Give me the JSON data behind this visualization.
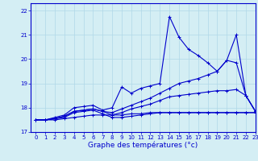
{
  "xlabel": "Graphe des températures (°c)",
  "xlim": [
    -0.5,
    23
  ],
  "ylim": [
    17,
    22.3
  ],
  "yticks": [
    17,
    18,
    19,
    20,
    21,
    22
  ],
  "xticks": [
    0,
    1,
    2,
    3,
    4,
    5,
    6,
    7,
    8,
    9,
    10,
    11,
    12,
    13,
    14,
    15,
    16,
    17,
    18,
    19,
    20,
    21,
    22,
    23
  ],
  "background_color": "#d4eef4",
  "grid_color": "#b0d8e8",
  "line_color": "#0000cc",
  "series": [
    {
      "x": [
        0,
        1,
        2,
        3,
        4,
        5,
        6,
        7,
        8,
        9,
        10,
        11,
        12,
        13,
        14,
        15,
        16,
        17,
        18,
        19,
        20,
        21,
        22,
        23
      ],
      "y": [
        17.5,
        17.5,
        17.5,
        17.55,
        17.6,
        17.65,
        17.7,
        17.7,
        17.7,
        17.7,
        17.75,
        17.75,
        17.8,
        17.8,
        17.8,
        17.8,
        17.8,
        17.8,
        17.8,
        17.8,
        17.8,
        17.8,
        17.8,
        17.8
      ]
    },
    {
      "x": [
        0,
        1,
        2,
        3,
        4,
        5,
        6,
        7,
        8,
        9,
        10,
        11,
        12,
        13,
        14,
        15,
        16,
        17,
        18,
        19,
        20,
        21,
        22,
        23
      ],
      "y": [
        17.5,
        17.5,
        17.55,
        17.6,
        17.8,
        17.85,
        17.9,
        17.75,
        17.6,
        17.6,
        17.65,
        17.7,
        17.75,
        17.8,
        17.8,
        17.8,
        17.8,
        17.8,
        17.8,
        17.8,
        17.8,
        17.8,
        17.8,
        17.8
      ]
    },
    {
      "x": [
        0,
        1,
        2,
        3,
        4,
        5,
        6,
        7,
        8,
        9,
        10,
        11,
        12,
        13,
        14,
        15,
        16,
        17,
        18,
        19,
        20,
        21,
        22,
        23
      ],
      "y": [
        17.5,
        17.5,
        17.55,
        17.65,
        17.85,
        17.9,
        17.95,
        17.85,
        17.7,
        17.8,
        17.95,
        18.05,
        18.15,
        18.3,
        18.45,
        18.5,
        18.55,
        18.6,
        18.65,
        18.7,
        18.7,
        18.75,
        18.5,
        17.85
      ]
    },
    {
      "x": [
        0,
        1,
        2,
        3,
        4,
        5,
        6,
        7,
        8,
        9,
        10,
        11,
        12,
        13,
        14,
        15,
        16,
        17,
        18,
        19,
        20,
        21,
        22,
        23
      ],
      "y": [
        17.5,
        17.5,
        17.6,
        17.7,
        18.0,
        18.05,
        18.1,
        17.9,
        18.0,
        18.85,
        18.6,
        18.8,
        18.9,
        19.0,
        21.75,
        20.9,
        20.4,
        20.15,
        19.85,
        19.5,
        19.95,
        21.0,
        18.5,
        17.85
      ]
    },
    {
      "x": [
        0,
        1,
        2,
        3,
        4,
        5,
        6,
        7,
        8,
        9,
        10,
        11,
        12,
        13,
        14,
        15,
        16,
        17,
        18,
        19,
        20,
        21,
        22,
        23
      ],
      "y": [
        17.5,
        17.5,
        17.55,
        17.65,
        17.85,
        17.9,
        17.95,
        17.85,
        17.8,
        17.95,
        18.1,
        18.25,
        18.4,
        18.6,
        18.8,
        19.0,
        19.1,
        19.2,
        19.35,
        19.5,
        19.95,
        19.85,
        18.5,
        17.85
      ]
    }
  ]
}
